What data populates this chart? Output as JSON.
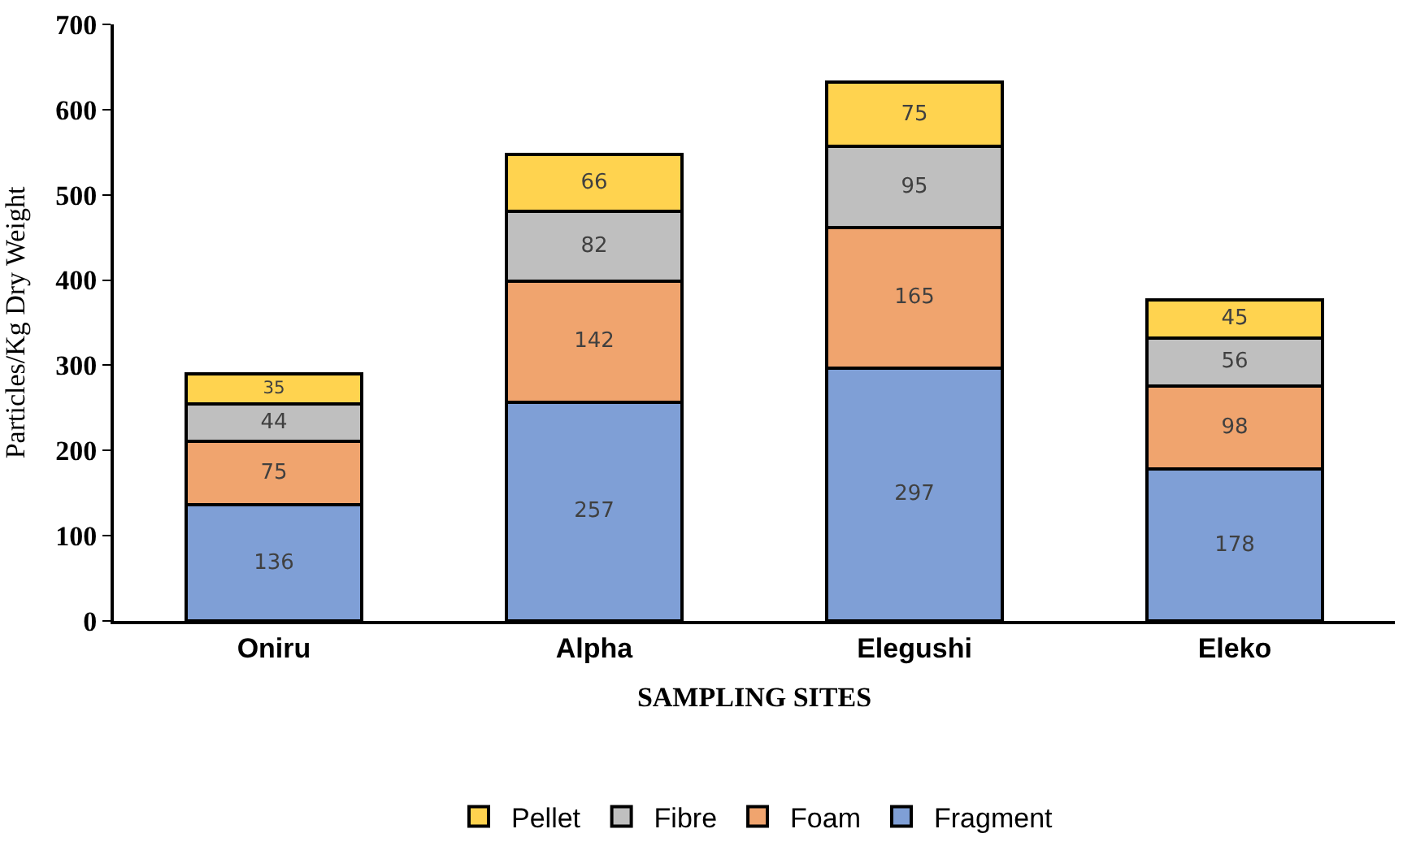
{
  "chart_data": {
    "type": "bar",
    "stacked": true,
    "xlabel": "SAMPLING SITES",
    "ylabel": "Particles/Kg Dry Weight",
    "categories": [
      "Oniru",
      "Alpha",
      "Elegushi",
      "Eleko"
    ],
    "series": [
      {
        "name": "Fragment",
        "color": "#7f9fd6",
        "values": [
          136,
          257,
          297,
          178
        ]
      },
      {
        "name": "Foam",
        "color": "#f0a46e",
        "values": [
          75,
          142,
          165,
          98
        ]
      },
      {
        "name": "Fibre",
        "color": "#bfbfbf",
        "values": [
          44,
          82,
          95,
          56
        ]
      },
      {
        "name": "Pellet",
        "color": "#ffd34f",
        "values": [
          35,
          66,
          75,
          45
        ]
      }
    ],
    "ylim": [
      0,
      700
    ],
    "yticks": [
      0,
      100,
      200,
      300,
      400,
      500,
      600,
      700
    ],
    "grid": false,
    "legend": "bottom",
    "data_labels": true
  }
}
